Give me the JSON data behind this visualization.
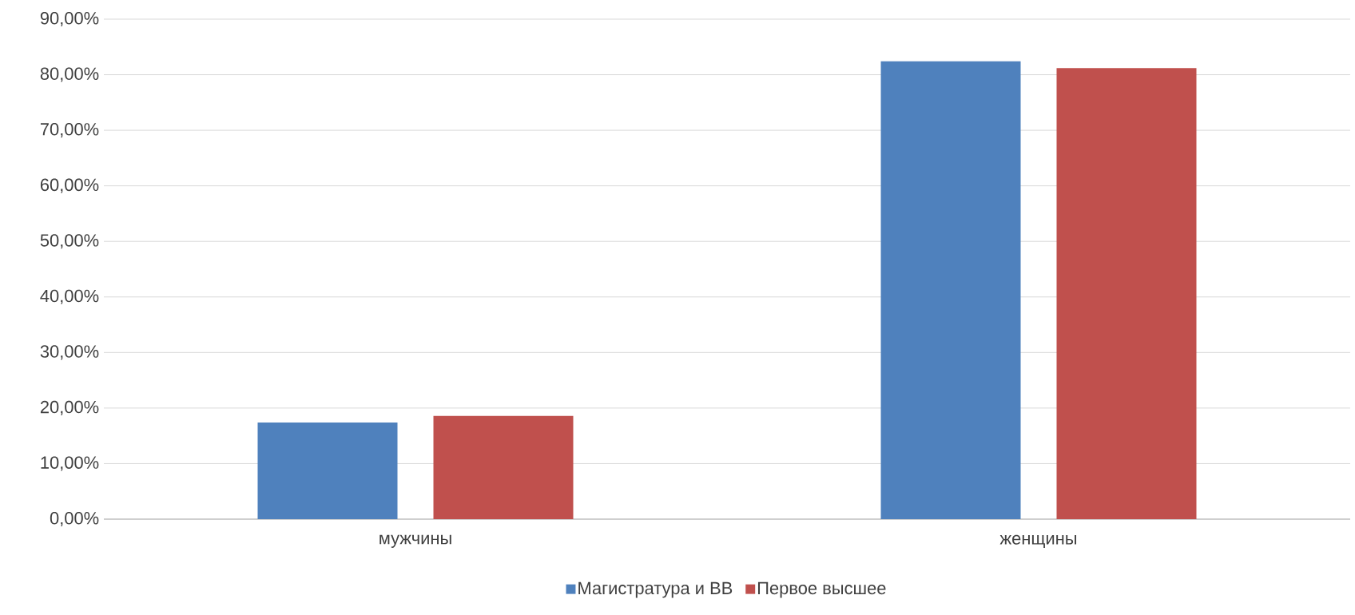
{
  "chart_data": {
    "type": "bar",
    "categories": [
      "мужчины",
      "женщины"
    ],
    "series": [
      {
        "name": "Магистратура и ВВ",
        "color": "#4f81bd",
        "values": [
          17.4,
          82.4
        ]
      },
      {
        "name": "Первое высшее",
        "color": "#c0504d",
        "values": [
          18.6,
          81.2
        ]
      }
    ],
    "ylim": [
      0,
      90
    ],
    "yticks": [
      {
        "value": 0,
        "label": "0,00%"
      },
      {
        "value": 10,
        "label": "10,00%"
      },
      {
        "value": 20,
        "label": "20,00%"
      },
      {
        "value": 30,
        "label": "30,00%"
      },
      {
        "value": 40,
        "label": "40,00%"
      },
      {
        "value": 50,
        "label": "50,00%"
      },
      {
        "value": 60,
        "label": "60,00%"
      },
      {
        "value": 70,
        "label": "70,00%"
      },
      {
        "value": 80,
        "label": "80,00%"
      },
      {
        "value": 90,
        "label": "90,00%"
      }
    ],
    "grid": "y",
    "legend": "bottom"
  }
}
